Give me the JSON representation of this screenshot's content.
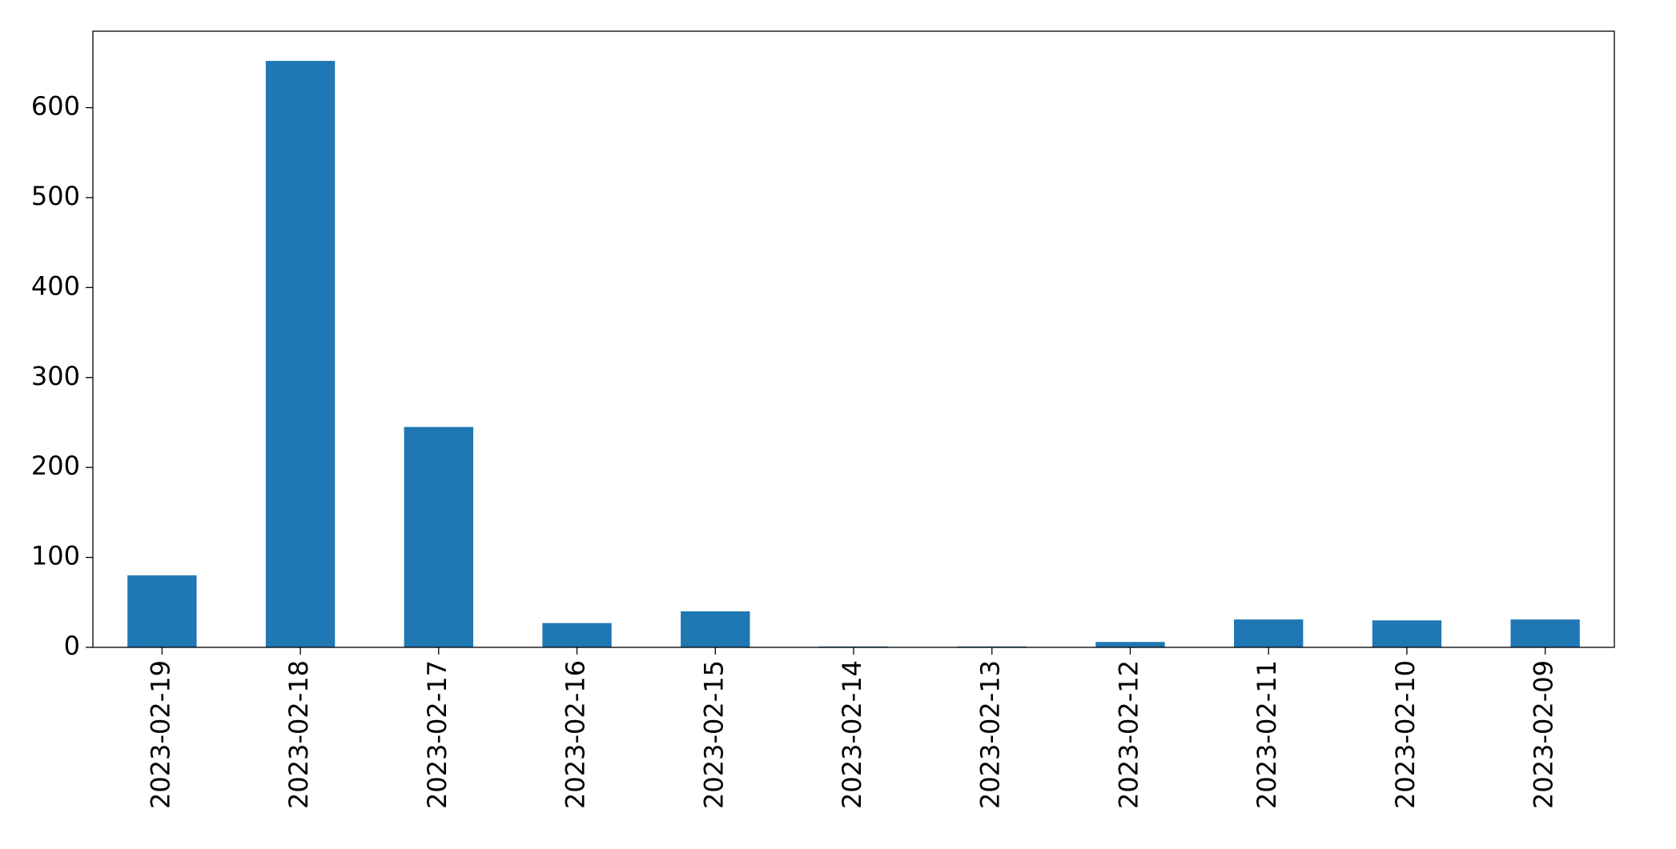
{
  "chart_data": {
    "type": "bar",
    "categories": [
      "2023-02-19",
      "2023-02-18",
      "2023-02-17",
      "2023-02-16",
      "2023-02-15",
      "2023-02-14",
      "2023-02-13",
      "2023-02-12",
      "2023-02-11",
      "2023-02-10",
      "2023-02-09"
    ],
    "values": [
      80,
      652,
      245,
      27,
      40,
      1,
      1,
      6,
      31,
      30,
      31
    ],
    "color": "#1f77b4",
    "ylim": [
      0,
      685
    ],
    "yticks": [
      0,
      100,
      200,
      300,
      400,
      500,
      600
    ],
    "grid": false
  }
}
